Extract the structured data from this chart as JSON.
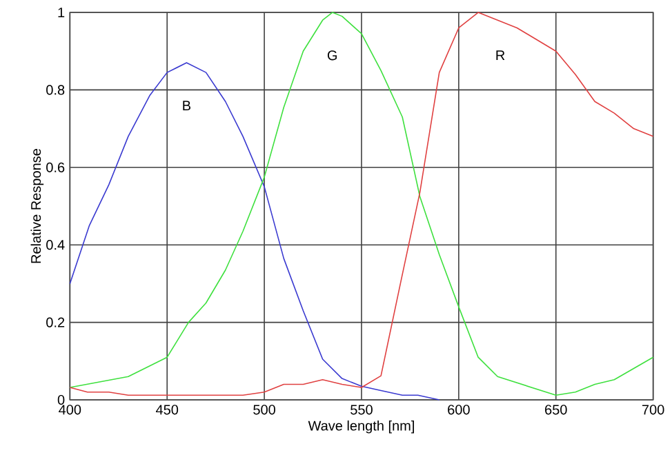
{
  "chart_data": {
    "type": "line",
    "xlabel": "Wave length [nm]",
    "ylabel": "Relative Response",
    "xlim": [
      400,
      700
    ],
    "ylim": [
      0,
      1
    ],
    "xticks": [
      400,
      450,
      500,
      550,
      600,
      650,
      700
    ],
    "yticks": [
      0,
      0.2,
      0.4,
      0.6,
      0.8,
      1
    ],
    "grid": true,
    "marker": "none",
    "line_style": "solid",
    "series": [
      {
        "name": "B",
        "color": "#3a3ad0",
        "x": [
          400,
          410,
          420,
          430,
          441,
          450,
          460,
          470,
          480,
          489,
          500,
          510,
          520,
          530,
          540,
          550,
          560,
          571,
          579,
          590
        ],
        "values": [
          0.3,
          0.45,
          0.555,
          0.68,
          0.785,
          0.845,
          0.87,
          0.845,
          0.77,
          0.68,
          0.55,
          0.365,
          0.23,
          0.105,
          0.055,
          0.035,
          0.024,
          0.012,
          0.012,
          0
        ]
      },
      {
        "name": "G",
        "color": "#3ee03e",
        "x": [
          400,
          430,
          450,
          461,
          470,
          480,
          489,
          500,
          510,
          520,
          530,
          535,
          540,
          550,
          560,
          571,
          580,
          590,
          600,
          610,
          620,
          650,
          660,
          670,
          680,
          700
        ],
        "values": [
          0.032,
          0.06,
          0.11,
          0.2,
          0.25,
          0.335,
          0.435,
          0.575,
          0.755,
          0.9,
          0.98,
          1.0,
          0.99,
          0.945,
          0.85,
          0.73,
          0.525,
          0.375,
          0.24,
          0.11,
          0.06,
          0.012,
          0.02,
          0.04,
          0.052,
          0.11
        ]
      },
      {
        "name": "R",
        "color": "#e04040",
        "x": [
          400,
          409,
          420,
          430,
          489,
          500,
          510,
          520,
          530,
          540,
          550,
          560,
          570,
          580,
          590,
          600,
          610,
          630,
          650,
          660,
          670,
          680,
          690,
          700
        ],
        "values": [
          0.032,
          0.02,
          0.02,
          0.012,
          0.012,
          0.02,
          0.04,
          0.04,
          0.052,
          0.04,
          0.032,
          0.062,
          0.3,
          0.535,
          0.845,
          0.96,
          1.0,
          0.96,
          0.9,
          0.84,
          0.77,
          0.74,
          0.7,
          0.68
        ]
      }
    ]
  }
}
